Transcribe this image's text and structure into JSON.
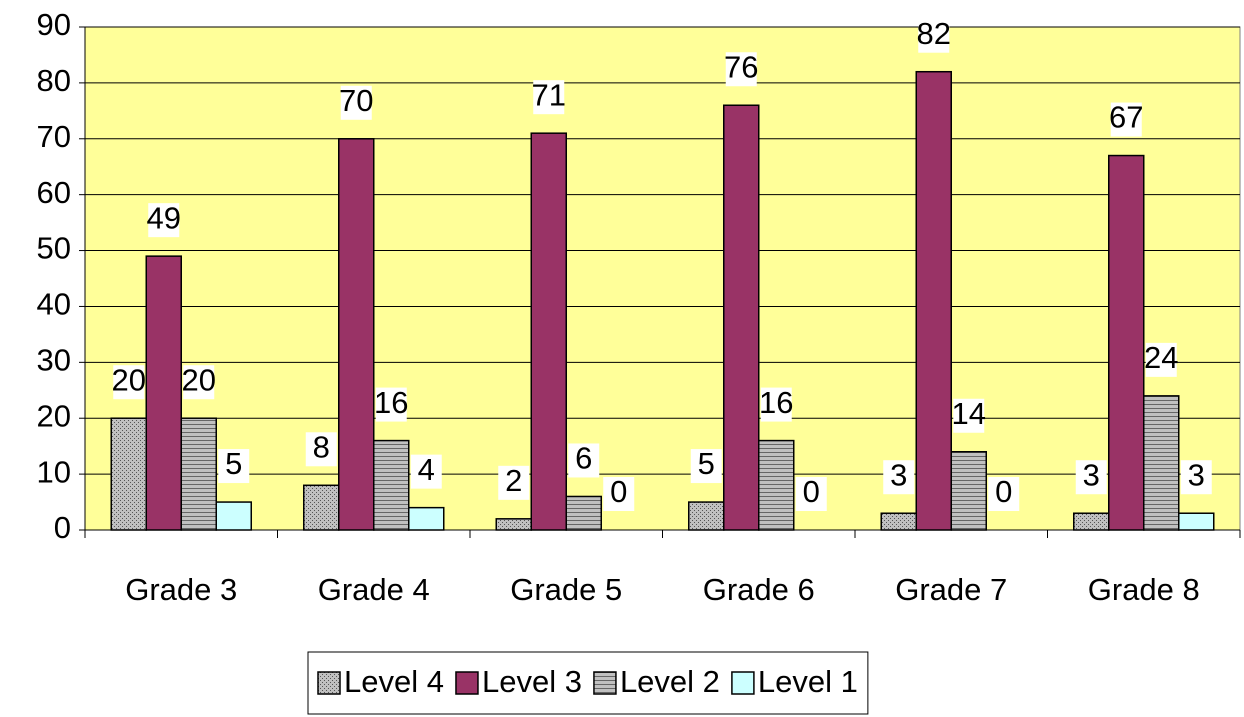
{
  "chart_data": {
    "type": "bar",
    "categories": [
      "Grade 3",
      "Grade 4",
      "Grade 5",
      "Grade 6",
      "Grade 7",
      "Grade 8"
    ],
    "series": [
      {
        "name": "Level 4",
        "color": "#c0c0c0",
        "hatch": "dots",
        "values": [
          20,
          8,
          2,
          5,
          3,
          3
        ]
      },
      {
        "name": "Level 3",
        "color": "#993366",
        "values": [
          49,
          70,
          71,
          76,
          82,
          67
        ]
      },
      {
        "name": "Level 2",
        "color": "#c0c0c0",
        "hatch": "horizontal",
        "values": [
          20,
          16,
          6,
          16,
          14,
          24
        ]
      },
      {
        "name": "Level 1",
        "color": "#ccffff",
        "values": [
          5,
          4,
          0,
          0,
          0,
          3
        ]
      }
    ],
    "ylim": [
      0,
      90
    ],
    "yticks": [
      0,
      10,
      20,
      30,
      40,
      50,
      60,
      70,
      80,
      90
    ],
    "grid": true,
    "plot_background": "#ffff99",
    "legend": "bottom"
  }
}
